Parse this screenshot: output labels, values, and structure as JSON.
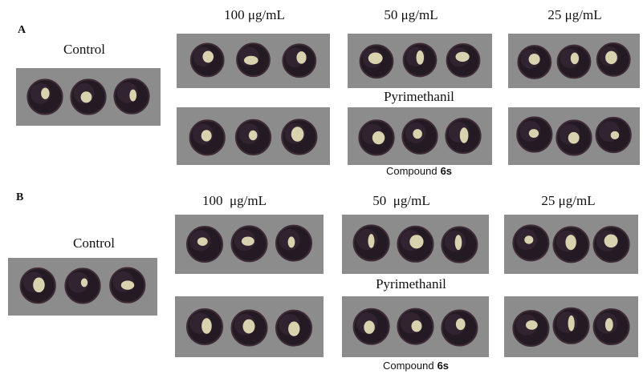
{
  "panels": [
    {
      "label": "A",
      "control": "Control",
      "concentrations": [
        "100 μg/mL",
        "50 μg/mL",
        "25 μg/mL"
      ],
      "reference": "Pyrimethanil",
      "compound": {
        "text": "Compound",
        "bold": "6s"
      }
    },
    {
      "label": "B",
      "control": "Control",
      "concentrations": [
        "100  μg/mL",
        "50  μg/mL",
        "25 μg/mL"
      ],
      "reference": "Pyrimethanil",
      "compound": {
        "text": "Compound",
        "bold": "6s"
      }
    }
  ]
}
